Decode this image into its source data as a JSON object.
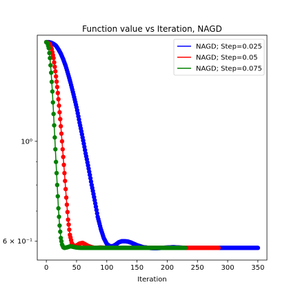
{
  "chart_data": {
    "type": "line",
    "title": "Function value vs Iteration, NAGD",
    "xlabel": "Iteration",
    "ylabel": "",
    "xlim": [
      -15,
      365
    ],
    "ylim": [
      0.545,
      1.72
    ],
    "yscale": "log",
    "legend_position": "top-right",
    "xticks": [
      0,
      50,
      100,
      150,
      200,
      250,
      300,
      350
    ],
    "yticks": [
      {
        "value": 1.0,
        "label": "10⁰",
        "major": true
      },
      {
        "value": 0.6,
        "label": "6 × 10⁻¹",
        "major": true
      },
      {
        "value": 0.7,
        "label": "",
        "major": false
      },
      {
        "value": 0.8,
        "label": "",
        "major": false
      },
      {
        "value": 0.9,
        "label": "",
        "major": false
      }
    ],
    "series": [
      {
        "name": "NAGD; Step=0.025",
        "color": "#0000ff",
        "x_max": 350,
        "points": [
          [
            0,
            1.66
          ],
          [
            4,
            1.66
          ],
          [
            8,
            1.655
          ],
          [
            12,
            1.645
          ],
          [
            16,
            1.63
          ],
          [
            20,
            1.6
          ],
          [
            24,
            1.565
          ],
          [
            28,
            1.52
          ],
          [
            32,
            1.47
          ],
          [
            36,
            1.41
          ],
          [
            40,
            1.35
          ],
          [
            45,
            1.27
          ],
          [
            50,
            1.19
          ],
          [
            55,
            1.1
          ],
          [
            60,
            1.02
          ],
          [
            65,
            0.94
          ],
          [
            70,
            0.87
          ],
          [
            75,
            0.8
          ],
          [
            80,
            0.74
          ],
          [
            85,
            0.68
          ],
          [
            90,
            0.64
          ],
          [
            95,
            0.61
          ],
          [
            100,
            0.592
          ],
          [
            105,
            0.585
          ],
          [
            110,
            0.585
          ],
          [
            115,
            0.59
          ],
          [
            120,
            0.597
          ],
          [
            125,
            0.6
          ],
          [
            130,
            0.6
          ],
          [
            135,
            0.599
          ],
          [
            140,
            0.596
          ],
          [
            145,
            0.592
          ],
          [
            150,
            0.588
          ],
          [
            155,
            0.585
          ],
          [
            160,
            0.582
          ],
          [
            170,
            0.58
          ],
          [
            180,
            0.579
          ],
          [
            190,
            0.58
          ],
          [
            200,
            0.581
          ],
          [
            210,
            0.582
          ],
          [
            220,
            0.581
          ],
          [
            230,
            0.58
          ],
          [
            240,
            0.58
          ],
          [
            260,
            0.58
          ],
          [
            280,
            0.58
          ],
          [
            300,
            0.58
          ],
          [
            320,
            0.58
          ],
          [
            350,
            0.58
          ]
        ]
      },
      {
        "name": "NAGD; Step=0.05",
        "color": "#ff0000",
        "x_max": 285,
        "points": [
          [
            0,
            1.66
          ],
          [
            3,
            1.655
          ],
          [
            6,
            1.64
          ],
          [
            9,
            1.6
          ],
          [
            12,
            1.53
          ],
          [
            15,
            1.43
          ],
          [
            18,
            1.32
          ],
          [
            21,
            1.2
          ],
          [
            24,
            1.08
          ],
          [
            27,
            0.96
          ],
          [
            30,
            0.85
          ],
          [
            33,
            0.75
          ],
          [
            36,
            0.67
          ],
          [
            39,
            0.62
          ],
          [
            42,
            0.595
          ],
          [
            45,
            0.585
          ],
          [
            50,
            0.587
          ],
          [
            55,
            0.593
          ],
          [
            60,
            0.595
          ],
          [
            65,
            0.59
          ],
          [
            70,
            0.585
          ],
          [
            75,
            0.582
          ],
          [
            80,
            0.58
          ],
          [
            90,
            0.581
          ],
          [
            100,
            0.58
          ],
          [
            120,
            0.58
          ],
          [
            150,
            0.58
          ],
          [
            200,
            0.58
          ],
          [
            250,
            0.58
          ],
          [
            285,
            0.58
          ]
        ]
      },
      {
        "name": "NAGD; Step=0.075",
        "color": "#008000",
        "x_max": 230,
        "points": [
          [
            0,
            1.66
          ],
          [
            2,
            1.65
          ],
          [
            4,
            1.61
          ],
          [
            6,
            1.53
          ],
          [
            8,
            1.42
          ],
          [
            10,
            1.29
          ],
          [
            12,
            1.15
          ],
          [
            14,
            1.02
          ],
          [
            16,
            0.9
          ],
          [
            18,
            0.8
          ],
          [
            20,
            0.71
          ],
          [
            22,
            0.65
          ],
          [
            24,
            0.61
          ],
          [
            26,
            0.59
          ],
          [
            28,
            0.582
          ],
          [
            30,
            0.58
          ],
          [
            35,
            0.582
          ],
          [
            40,
            0.585
          ],
          [
            45,
            0.583
          ],
          [
            50,
            0.581
          ],
          [
            60,
            0.58
          ],
          [
            80,
            0.58
          ],
          [
            100,
            0.58
          ],
          [
            150,
            0.58
          ],
          [
            200,
            0.58
          ],
          [
            230,
            0.58
          ]
        ]
      }
    ]
  }
}
